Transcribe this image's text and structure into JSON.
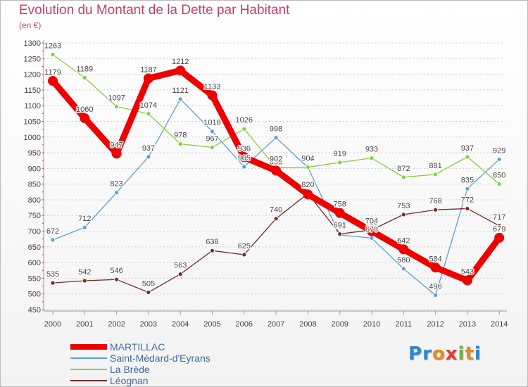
{
  "title": "Evolution du Montant de la Dette par Habitant",
  "subtitle": "(en €)",
  "logo": {
    "letters": [
      "P",
      "r",
      "o",
      "x",
      "i",
      "t",
      "i"
    ],
    "colors": [
      "#2e86c9",
      "#2e86c9",
      "#e8891c",
      "#e53935",
      "#69b336",
      "#e8891c",
      "#2e86c9"
    ]
  },
  "chart_data": {
    "type": "line",
    "title": "Evolution du Montant de la Dette par Habitant",
    "ylabel": "(en €)",
    "xlabel": "",
    "ylim": [
      450,
      1300
    ],
    "yticks": [
      450,
      500,
      550,
      600,
      650,
      700,
      750,
      800,
      850,
      900,
      950,
      1000,
      1050,
      1100,
      1150,
      1200,
      1250,
      1300
    ],
    "grid": "dashed horizontal",
    "legend_position": "bottom-left",
    "x": [
      "2000",
      "2001",
      "2002",
      "2003",
      "2004",
      "2005",
      "2006",
      "2007",
      "2008",
      "2009",
      "2010",
      "2011",
      "2012",
      "2013",
      "2014"
    ],
    "series": [
      {
        "name": "MARTILLAC",
        "color": "#ee0000",
        "values": [
          1179,
          1060,
          947,
          1187,
          1212,
          1133,
          936,
          893,
          817,
          758,
          700,
          642,
          584,
          543,
          679
        ]
      },
      {
        "name": "Saint-Médard-d'Eyrans",
        "color": "#5ea0d4",
        "values": [
          672,
          712,
          823,
          937,
          1121,
          1018,
          905,
          998,
          903,
          688,
          678,
          580,
          496,
          835,
          929
        ]
      },
      {
        "name": "La Brède",
        "color": "#85cf3d",
        "values": [
          1263,
          1189,
          1097,
          1074,
          978,
          967,
          1026,
          902,
          904,
          919,
          933,
          872,
          881,
          937,
          850
        ]
      },
      {
        "name": "Léognan",
        "color": "#7a2a2a",
        "values": [
          535,
          542,
          546,
          505,
          563,
          638,
          625,
          740,
          820,
          691,
          704,
          753,
          768,
          772,
          717
        ]
      }
    ]
  }
}
